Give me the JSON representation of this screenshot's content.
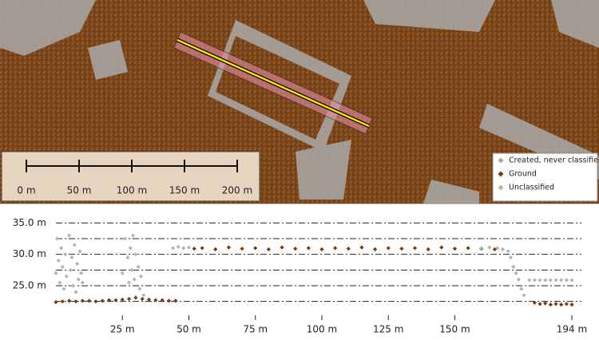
{
  "map": {
    "scale_bar": {
      "labels": [
        "0 m",
        "50 m",
        "100 m",
        "150 m",
        "200 m"
      ]
    }
  },
  "chart_data": {
    "type": "scatter",
    "xlim": [
      0,
      194
    ],
    "ylim": [
      20.3,
      37.2
    ],
    "xticks": [
      {
        "value": 25,
        "label": "25 m"
      },
      {
        "value": 50,
        "label": "50 m"
      },
      {
        "value": 75,
        "label": "75 m"
      },
      {
        "value": 100,
        "label": "100 m"
      },
      {
        "value": 125,
        "label": "125 m"
      },
      {
        "value": 150,
        "label": "150 m"
      },
      {
        "value": 194,
        "label": "194 m"
      }
    ],
    "yticks": [
      {
        "value": 25,
        "label": "25.0 m"
      },
      {
        "value": 30,
        "label": "30.0 m"
      },
      {
        "value": 35,
        "label": "35.0 m"
      }
    ],
    "minor_yticks": [
      22.5,
      27.5,
      32.5
    ],
    "grid": true,
    "series": [
      {
        "name": "Created, never classified",
        "color": "#a8a8a8",
        "x": [],
        "values": []
      },
      {
        "name": "Ground",
        "color": "#7a3a0c",
        "x": [
          0,
          2.5,
          5,
          7.5,
          10,
          12.5,
          15,
          17.5,
          20,
          22.5,
          25,
          27.5,
          30,
          32.5,
          35,
          37.5,
          40,
          42.5,
          45,
          52,
          55,
          60,
          65,
          70,
          75,
          80,
          85,
          90,
          95,
          100,
          105,
          110,
          115,
          120,
          125,
          130,
          135,
          140,
          145,
          150,
          155,
          160,
          165,
          180,
          182,
          184,
          186,
          188,
          190,
          192,
          194
        ],
        "values": [
          22.4,
          22.5,
          22.6,
          22.5,
          22.6,
          22.6,
          22.5,
          22.6,
          22.7,
          22.7,
          22.8,
          22.9,
          23.1,
          22.9,
          22.8,
          22.7,
          22.7,
          22.6,
          22.6,
          30.9,
          31.0,
          30.8,
          31.1,
          30.9,
          31.0,
          30.8,
          31.1,
          30.9,
          31.0,
          30.8,
          31.0,
          30.9,
          31.1,
          30.8,
          31.0,
          30.9,
          31.0,
          30.8,
          31.1,
          30.9,
          31.0,
          30.9,
          30.8,
          22.3,
          22.1,
          22.2,
          22.0,
          22.1,
          22.0,
          22.1,
          22.0
        ]
      },
      {
        "name": "Unclassified",
        "color": "#b4b4b4",
        "x": [
          0,
          0.5,
          1,
          1.5,
          2,
          2.5,
          3,
          3.5,
          4,
          5,
          5.5,
          6,
          6.5,
          7,
          7.5,
          8,
          8.5,
          9,
          9.5,
          10,
          25,
          26,
          27,
          27.5,
          28,
          28.5,
          29,
          29.5,
          30,
          31,
          31.5,
          32,
          33,
          44,
          46,
          48,
          50,
          160,
          163,
          166,
          168,
          170,
          171,
          172,
          173,
          174,
          175,
          176,
          178,
          180,
          182,
          184,
          186,
          188,
          190,
          192,
          194
        ],
        "values": [
          27,
          32.5,
          29,
          25.5,
          31,
          28,
          24.5,
          30,
          26.5,
          33,
          27.5,
          29.5,
          25,
          31.5,
          24,
          28.5,
          26,
          30.5,
          27,
          25.5,
          27,
          32.5,
          29.5,
          25.5,
          31,
          27.5,
          33,
          26,
          30,
          28,
          24.5,
          26.5,
          23.5,
          31,
          31.2,
          31,
          31.1,
          31,
          31.1,
          31,
          30.8,
          30.5,
          29.5,
          28,
          27,
          26,
          24.5,
          23.5,
          25.9,
          25.9,
          25.9,
          25.9,
          25.9,
          25.9,
          25.9,
          25.9,
          25.9
        ]
      }
    ]
  }
}
